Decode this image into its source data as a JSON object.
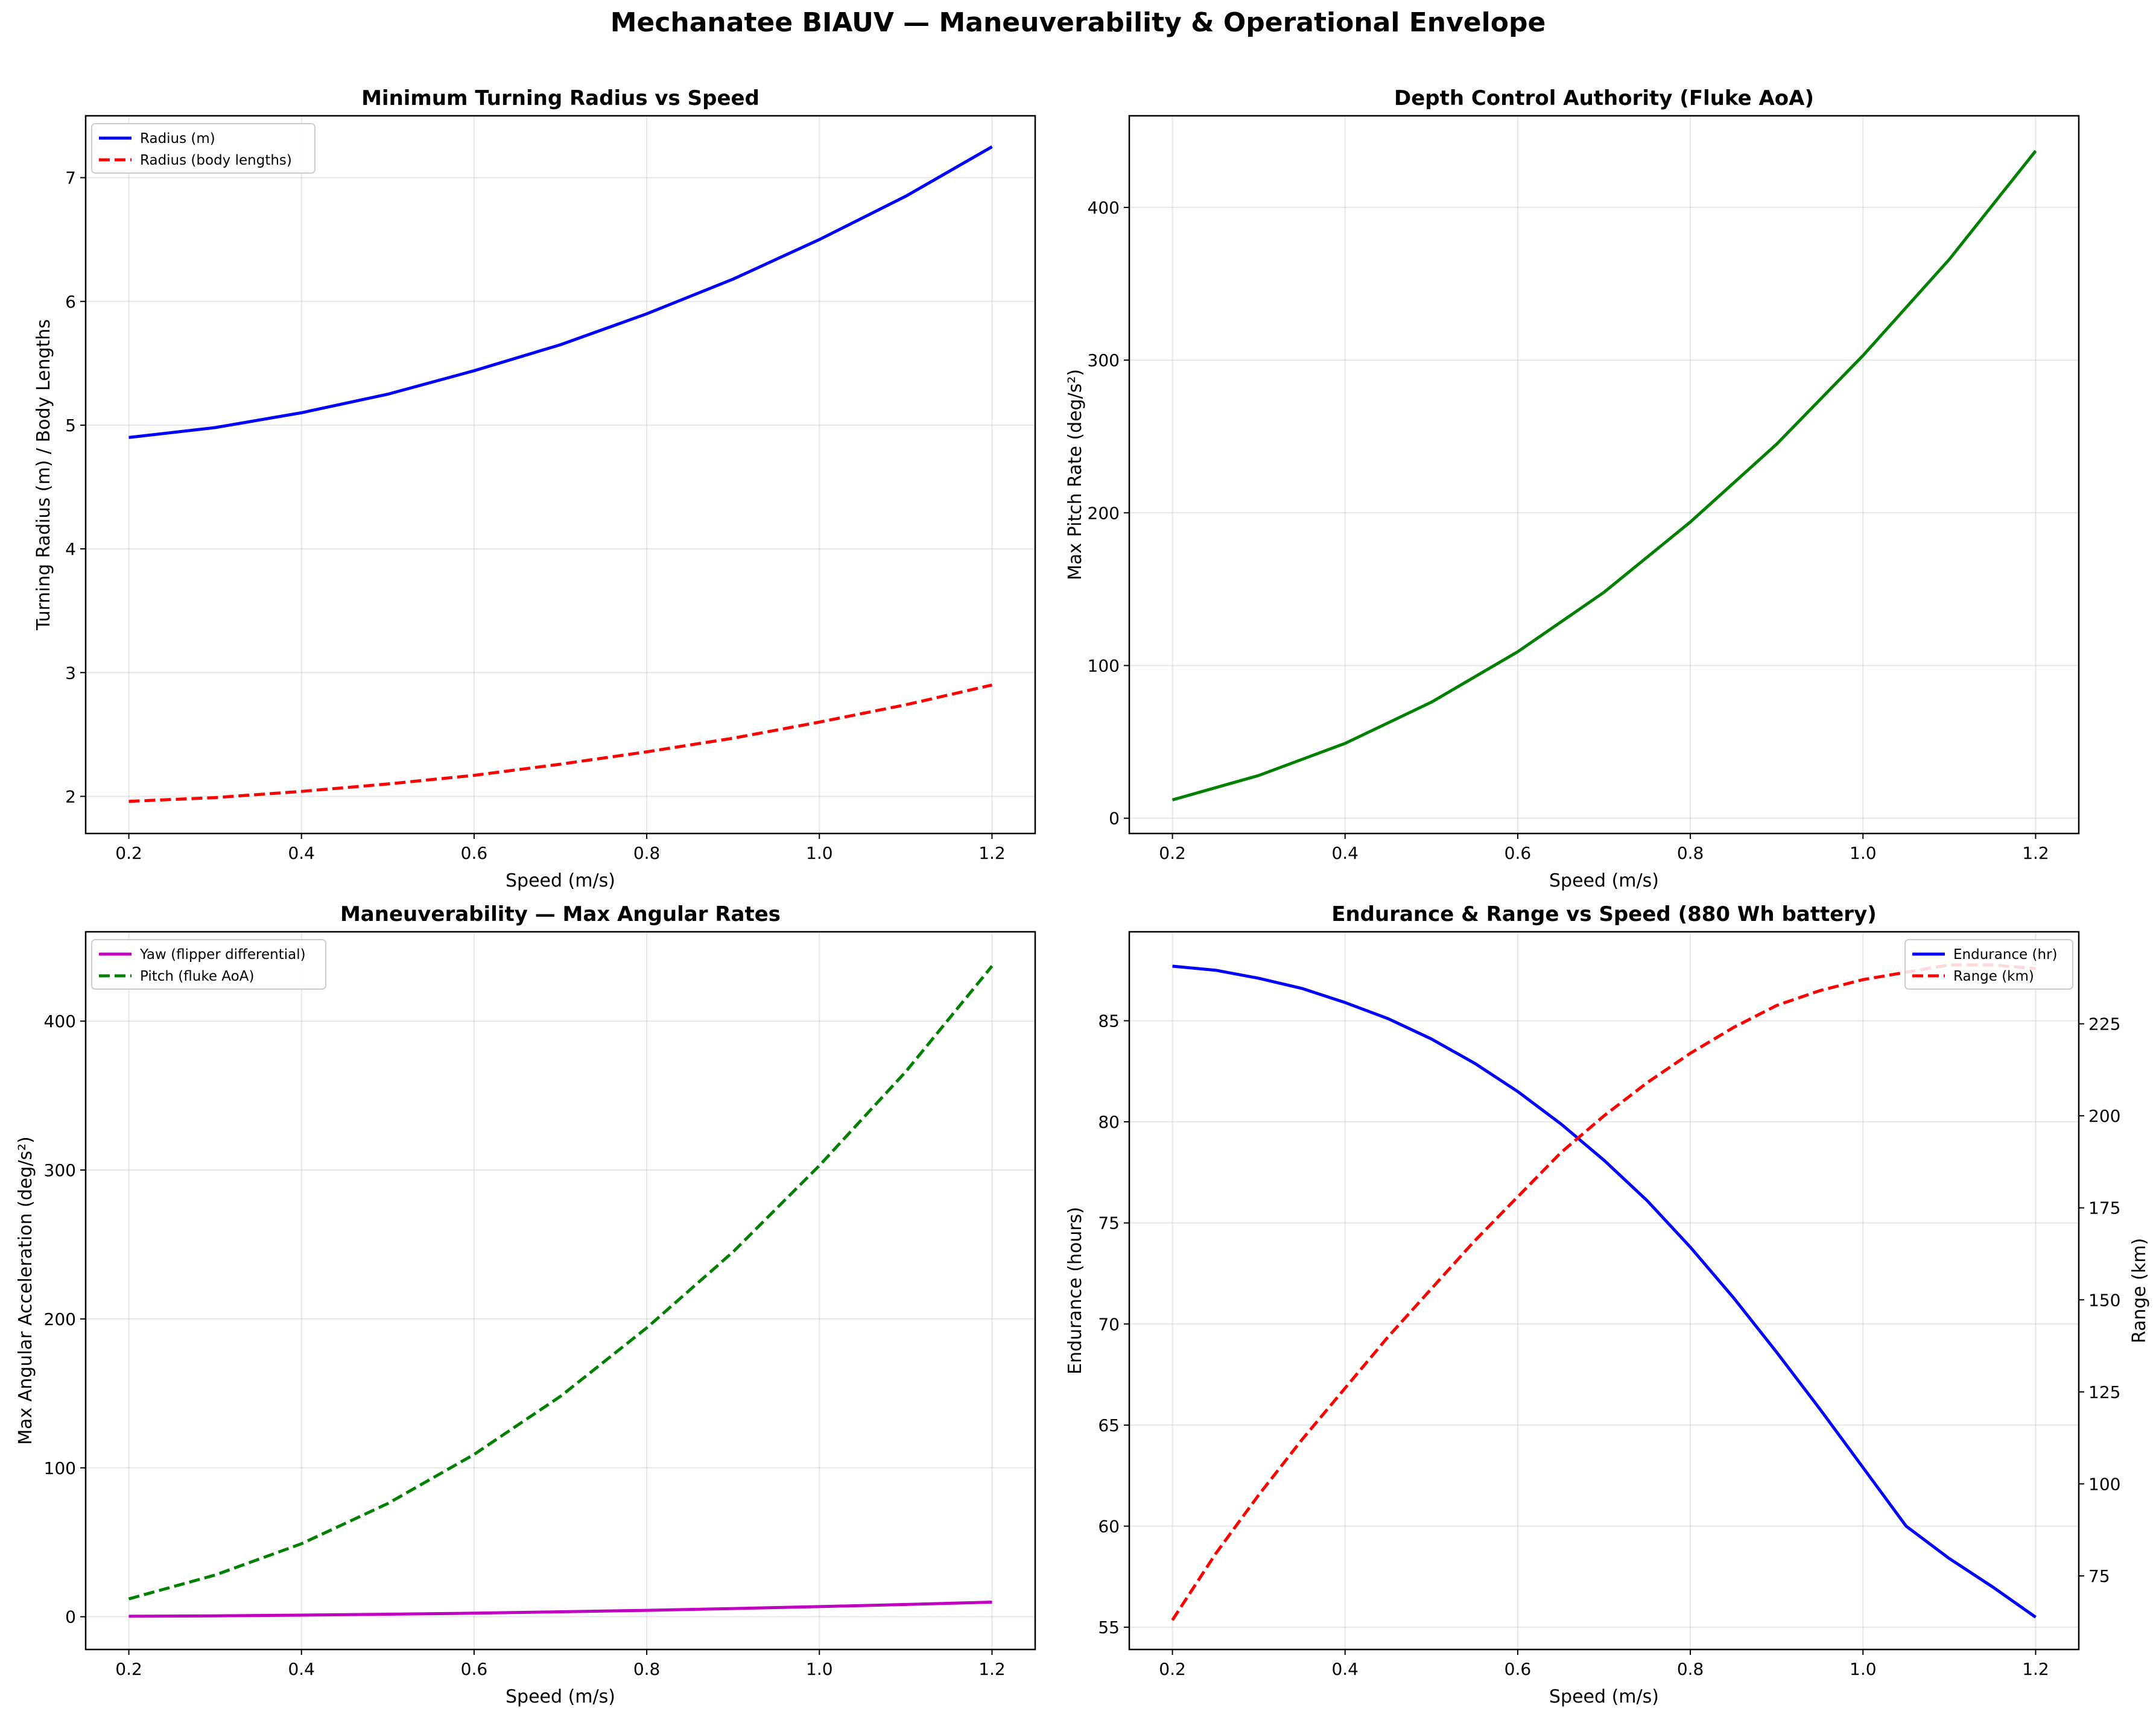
{
  "figure": {
    "title": "Mechanatee BIAUV — Maneuverability & Operational Envelope"
  },
  "chart_data": [
    {
      "type": "line",
      "title": "Minimum Turning Radius vs Speed",
      "xlabel": "Speed (m/s)",
      "ylabel": "Turning Radius (m) / Body Lengths",
      "xlim": [
        0.15,
        1.25
      ],
      "ylim": [
        1.7,
        7.5
      ],
      "xticks": [
        "0.2",
        "0.4",
        "0.6",
        "0.8",
        "1.0",
        "1.2"
      ],
      "yticks": [
        "2",
        "3",
        "4",
        "5",
        "6",
        "7"
      ],
      "grid": true,
      "legend": "top-left",
      "x": [
        0.2,
        0.3,
        0.4,
        0.5,
        0.6,
        0.7,
        0.8,
        0.9,
        1.0,
        1.1,
        1.2
      ],
      "series": [
        {
          "name": "Radius (m)",
          "color": "#0000ff",
          "dash": "solid",
          "values": [
            4.9,
            4.98,
            5.1,
            5.25,
            5.44,
            5.65,
            5.9,
            6.18,
            6.5,
            6.85,
            7.25
          ]
        },
        {
          "name": "Radius (body lengths)",
          "color": "#ff0000",
          "dash": "dashed",
          "values": [
            1.96,
            1.99,
            2.04,
            2.1,
            2.17,
            2.26,
            2.36,
            2.47,
            2.6,
            2.74,
            2.9
          ]
        }
      ]
    },
    {
      "type": "line",
      "title": "Depth Control Authority (Fluke AoA)",
      "xlabel": "Speed (m/s)",
      "ylabel": "Max Pitch Rate (deg/s²)",
      "xlim": [
        0.15,
        1.25
      ],
      "ylim": [
        -10,
        460
      ],
      "xticks": [
        "0.2",
        "0.4",
        "0.6",
        "0.8",
        "1.0",
        "1.2"
      ],
      "yticks": [
        "0",
        "100",
        "200",
        "300",
        "400"
      ],
      "grid": true,
      "legend": "none",
      "x": [
        0.2,
        0.3,
        0.4,
        0.5,
        0.6,
        0.7,
        0.8,
        0.9,
        1.0,
        1.1,
        1.2
      ],
      "series": [
        {
          "color": "#008000",
          "dash": "solid",
          "values": [
            12,
            28,
            49,
            76,
            109,
            148,
            194,
            245,
            303,
            366,
            437
          ]
        }
      ]
    },
    {
      "type": "line",
      "title": "Maneuverability — Max Angular Rates",
      "xlabel": "Speed (m/s)",
      "ylabel": "Max Angular Acceleration (deg/s²)",
      "xlim": [
        0.15,
        1.25
      ],
      "ylim": [
        -22,
        460
      ],
      "xticks": [
        "0.2",
        "0.4",
        "0.6",
        "0.8",
        "1.0",
        "1.2"
      ],
      "yticks": [
        "0",
        "100",
        "200",
        "300",
        "400"
      ],
      "grid": true,
      "legend": "top-left",
      "x": [
        0.2,
        0.3,
        0.4,
        0.5,
        0.6,
        0.7,
        0.8,
        0.9,
        1.0,
        1.1,
        1.2
      ],
      "series": [
        {
          "name": "Yaw (flipper differential)",
          "color": "#bf00bf",
          "dash": "solid",
          "values": [
            0.3,
            0.6,
            1.1,
            1.7,
            2.4,
            3.3,
            4.3,
            5.5,
            6.8,
            8.2,
            9.8
          ]
        },
        {
          "name": "Pitch (fluke AoA)",
          "color": "#008000",
          "dash": "dashed",
          "values": [
            12,
            28,
            49,
            76,
            109,
            148,
            194,
            245,
            303,
            366,
            437
          ]
        }
      ]
    },
    {
      "type": "line",
      "title": "Endurance & Range vs Speed (880 Wh battery)",
      "xlabel": "Speed (m/s)",
      "ylabel": "Endurance (hours)",
      "y2label": "Range (km)",
      "xlim": [
        0.15,
        1.25
      ],
      "ylim": [
        53.9,
        89.4
      ],
      "y2lim": [
        55,
        250
      ],
      "xticks": [
        "0.2",
        "0.4",
        "0.6",
        "0.8",
        "1.0",
        "1.2"
      ],
      "yticks": [
        "55",
        "60",
        "65",
        "70",
        "75",
        "80",
        "85"
      ],
      "y2ticks": [
        "75",
        "100",
        "125",
        "150",
        "175",
        "200",
        "225"
      ],
      "grid": true,
      "legend": "top-right",
      "x": [
        0.2,
        0.25,
        0.3,
        0.35,
        0.4,
        0.45,
        0.5,
        0.55,
        0.6,
        0.65,
        0.7,
        0.75,
        0.8,
        0.85,
        0.9,
        0.95,
        1.0,
        1.05,
        1.1,
        1.15,
        1.2
      ],
      "series": [
        {
          "name": "Endurance (hr)",
          "axis": "left",
          "color": "#0000ff",
          "dash": "solid",
          "values": [
            87.7,
            87.5,
            87.1,
            86.6,
            85.9,
            85.1,
            84.1,
            82.9,
            81.5,
            79.9,
            78.1,
            76.1,
            73.8,
            71.3,
            68.6,
            65.8,
            62.9,
            60.0,
            58.4,
            57.0,
            55.5
          ]
        },
        {
          "name": "Range (km)",
          "axis": "right",
          "color": "#ff0000",
          "dash": "dashed",
          "values": [
            63,
            81,
            97,
            112,
            126,
            140,
            153,
            166,
            178,
            190,
            200,
            209,
            217,
            224,
            230,
            234,
            237,
            239,
            241,
            241,
            240
          ]
        }
      ]
    }
  ]
}
